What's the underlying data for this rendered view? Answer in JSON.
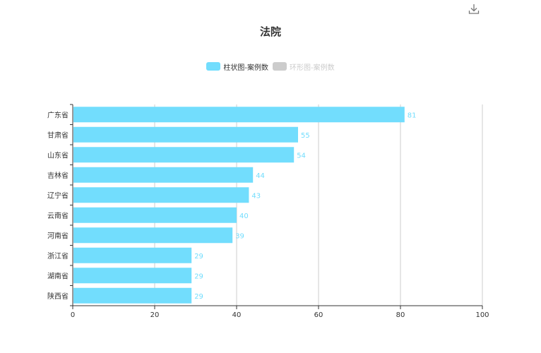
{
  "toolbar": {
    "download_icon": "download-icon"
  },
  "chart_data": {
    "type": "bar",
    "orientation": "horizontal",
    "title": "法院",
    "categories": [
      "广东省",
      "甘肃省",
      "山东省",
      "吉林省",
      "辽宁省",
      "云南省",
      "河南省",
      "浙江省",
      "湖南省",
      "陕西省"
    ],
    "series": [
      {
        "name": "柱状图-案例数",
        "values": [
          81,
          55,
          54,
          44,
          43,
          40,
          39,
          29,
          29,
          29
        ],
        "color": "#72ddfd",
        "visible": true
      },
      {
        "name": "环形图-案例数",
        "color": "#cccccc",
        "visible": false
      }
    ],
    "xlim": [
      0,
      100
    ],
    "xticks": [
      0,
      20,
      40,
      60,
      80,
      100
    ],
    "grid": true,
    "legend_position": "top-center",
    "xlabel": "",
    "ylabel": ""
  }
}
